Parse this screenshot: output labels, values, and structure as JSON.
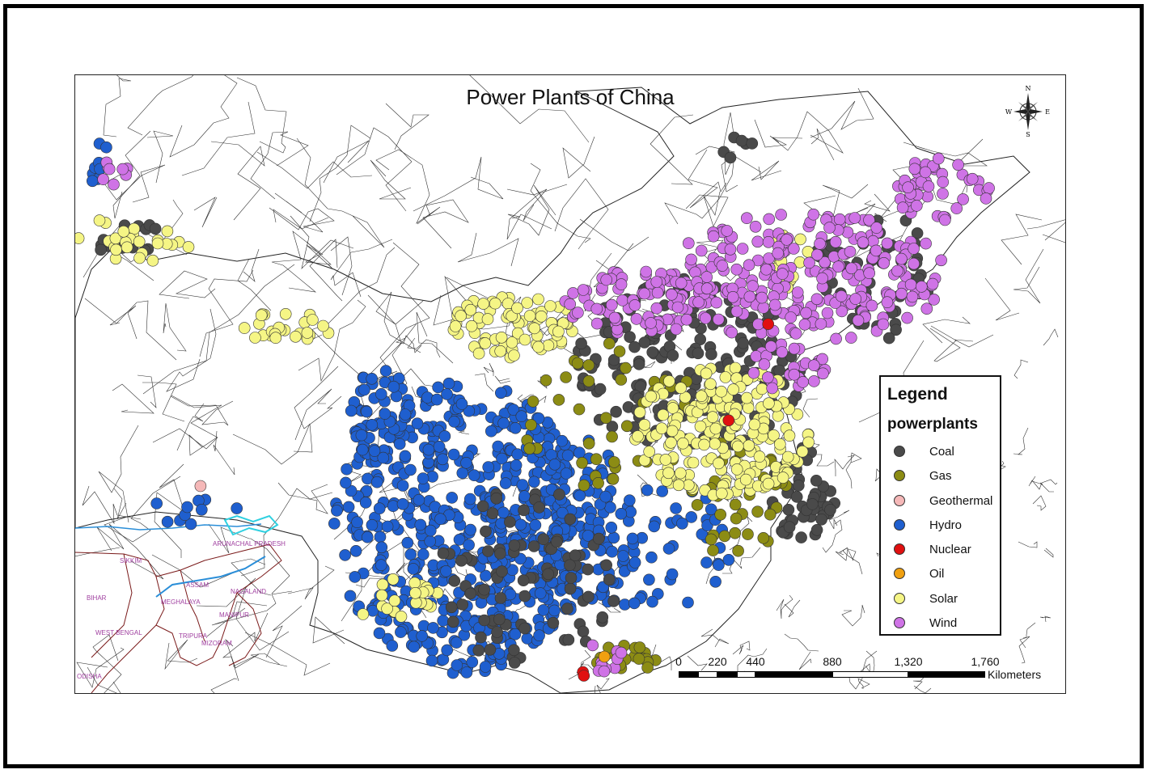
{
  "title": "Power Plants of China",
  "legend": {
    "heading": "Legend",
    "layer": "powerplants",
    "items": [
      {
        "label": "Coal",
        "color": "#4a4a4a"
      },
      {
        "label": "Gas",
        "color": "#8c8c14"
      },
      {
        "label": "Geothermal",
        "color": "#f5b8b8"
      },
      {
        "label": "Hydro",
        "color": "#1f5fcf"
      },
      {
        "label": "Nuclear",
        "color": "#e01010"
      },
      {
        "label": "Oil",
        "color": "#f0a010"
      },
      {
        "label": "Solar",
        "color": "#f5f585"
      },
      {
        "label": "Wind",
        "color": "#cf73e6"
      }
    ]
  },
  "scale_bar": {
    "labels": [
      "0",
      "220",
      "440",
      "880",
      "1,320",
      "1,760"
    ],
    "unit": "Kilometers"
  },
  "north_arrow": {
    "n": "N",
    "s": "S",
    "e": "E",
    "w": "W"
  },
  "region_labels": [
    "SIKKIM",
    "ARUNACHAL PRADESH",
    "BIHAR",
    "ASSAM",
    "MEGHALAYA",
    "NAGALAND",
    "MANIPUR",
    "WEST BENGAL",
    "TRIPURA",
    "MIZORAM",
    "ODISHA"
  ]
}
